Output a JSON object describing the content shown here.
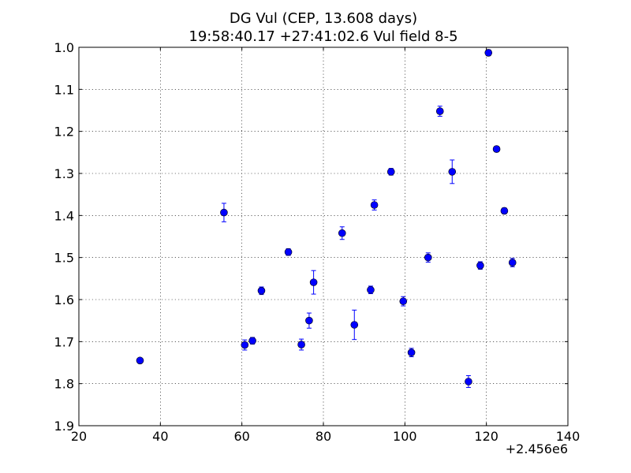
{
  "chart_data": {
    "type": "scatter",
    "title_line1": "DG Vul (CEP, 13.608 days)",
    "title_line2": "19:58:40.17 +27:41:02.6 Vul field 8-5",
    "xlabel": "",
    "ylabel": "",
    "x_offset_label": "+2.456e6",
    "xlim": [
      20,
      140
    ],
    "ylim": [
      1.9,
      1.0
    ],
    "y_inverted": true,
    "grid": true,
    "x_ticks": [
      "20",
      "40",
      "60",
      "80",
      "100",
      "120",
      "140"
    ],
    "y_ticks": [
      "1.0",
      "1.1",
      "1.2",
      "1.3",
      "1.4",
      "1.5",
      "1.6",
      "1.7",
      "1.8",
      "1.9"
    ],
    "marker_color": "#0000ff",
    "points": [
      {
        "x": 35.0,
        "y": 1.745,
        "err": 0.005
      },
      {
        "x": 55.6,
        "y": 1.393,
        "err": 0.022
      },
      {
        "x": 60.7,
        "y": 1.708,
        "err": 0.012
      },
      {
        "x": 62.6,
        "y": 1.698,
        "err": 0.008
      },
      {
        "x": 64.8,
        "y": 1.579,
        "err": 0.009
      },
      {
        "x": 71.4,
        "y": 1.487,
        "err": 0.008
      },
      {
        "x": 74.6,
        "y": 1.707,
        "err": 0.013
      },
      {
        "x": 76.5,
        "y": 1.65,
        "err": 0.018
      },
      {
        "x": 77.6,
        "y": 1.559,
        "err": 0.028
      },
      {
        "x": 84.6,
        "y": 1.442,
        "err": 0.015
      },
      {
        "x": 87.6,
        "y": 1.66,
        "err": 0.035
      },
      {
        "x": 91.6,
        "y": 1.577,
        "err": 0.009
      },
      {
        "x": 92.5,
        "y": 1.375,
        "err": 0.012
      },
      {
        "x": 96.6,
        "y": 1.296,
        "err": 0.008
      },
      {
        "x": 99.6,
        "y": 1.604,
        "err": 0.011
      },
      {
        "x": 101.6,
        "y": 1.726,
        "err": 0.01
      },
      {
        "x": 105.7,
        "y": 1.5,
        "err": 0.011
      },
      {
        "x": 108.6,
        "y": 1.152,
        "err": 0.012
      },
      {
        "x": 111.6,
        "y": 1.296,
        "err": 0.028
      },
      {
        "x": 115.6,
        "y": 1.795,
        "err": 0.014
      },
      {
        "x": 118.5,
        "y": 1.519,
        "err": 0.009
      },
      {
        "x": 120.5,
        "y": 1.013,
        "err": 0.007
      },
      {
        "x": 122.5,
        "y": 1.242,
        "err": 0.006
      },
      {
        "x": 124.4,
        "y": 1.389,
        "err": 0.007
      },
      {
        "x": 126.4,
        "y": 1.512,
        "err": 0.01
      }
    ]
  }
}
